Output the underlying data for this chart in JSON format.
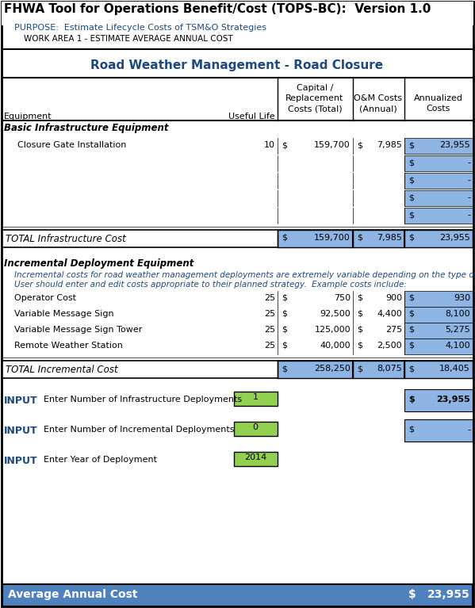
{
  "title": "FHWA Tool for Operations Benefit/Cost (TOPS-BC):  Version 1.0",
  "purpose": "PURPOSE:  Estimate Lifecycle Costs of TSM&O Strategies",
  "work_area": "WORK AREA 1 - ESTIMATE AVERAGE ANNUAL COST",
  "subtitle": "Road Weather Management - Road Closure",
  "col_headers_eq": "Equipment",
  "col_headers_ul": "Useful Life",
  "col_headers_cap1": "Capital /",
  "col_headers_cap2": "Replacement",
  "col_headers_cap3": "Costs (Total)",
  "col_headers_om1": "O&M Costs",
  "col_headers_om2": "(Annual)",
  "col_headers_ann1": "Annualized",
  "col_headers_ann2": "Costs",
  "basic_infra_label": "Basic Infrastructure Equipment",
  "basic_rows": [
    {
      "name": "Closure Gate Installation",
      "useful_life": "10",
      "cap_dollar": "$",
      "capital": "159,700",
      "om_dollar": "$",
      "om": "7,985",
      "annualized": "23,955"
    },
    {
      "name": "",
      "useful_life": "",
      "cap_dollar": "",
      "capital": "",
      "om_dollar": "",
      "om": "",
      "annualized": "-"
    },
    {
      "name": "",
      "useful_life": "",
      "cap_dollar": "",
      "capital": "",
      "om_dollar": "",
      "om": "",
      "annualized": "-"
    },
    {
      "name": "",
      "useful_life": "",
      "cap_dollar": "",
      "capital": "",
      "om_dollar": "",
      "om": "",
      "annualized": "-"
    },
    {
      "name": "",
      "useful_life": "",
      "cap_dollar": "",
      "capital": "",
      "om_dollar": "",
      "om": "",
      "annualized": "-"
    }
  ],
  "total_infra": {
    "label": "TOTAL Infrastructure Cost",
    "cap_dollar": "$",
    "capital": "159,700",
    "om_dollar": "$",
    "om": "7,985",
    "ann_dollar": "$",
    "annualized": "23,955"
  },
  "incremental_label": "Incremental Deployment Equipment",
  "incremental_note1": "Incremental costs for road weather management deployments are extremely variable depending on the type of dep",
  "incremental_note2": "User should enter and edit costs appropriate to their planned strategy.  Example costs include:",
  "incremental_rows": [
    {
      "name": "Operator Cost",
      "useful_life": "25",
      "cap_dollar": "$",
      "capital": "750",
      "om_dollar": "$",
      "om": "900",
      "annualized": "930"
    },
    {
      "name": "Variable Message Sign",
      "useful_life": "25",
      "cap_dollar": "$",
      "capital": "92,500",
      "om_dollar": "$",
      "om": "4,400",
      "annualized": "8,100"
    },
    {
      "name": "Variable Message Sign Tower",
      "useful_life": "25",
      "cap_dollar": "$",
      "capital": "125,000",
      "om_dollar": "$",
      "om": "275",
      "annualized": "5,275"
    },
    {
      "name": "Remote Weather Station",
      "useful_life": "25",
      "cap_dollar": "$",
      "capital": "40,000",
      "om_dollar": "$",
      "om": "2,500",
      "annualized": "4,100"
    }
  ],
  "total_incremental": {
    "label": "TOTAL Incremental Cost",
    "cap_dollar": "$",
    "capital": "258,250",
    "om_dollar": "$",
    "om": "8,075",
    "ann_dollar": "$",
    "annualized": "18,405"
  },
  "input_rows": [
    {
      "label": "INPUT",
      "text": "Enter Number of Infrastructure Deployments",
      "value": "1",
      "ann_dollar": "$",
      "annualized": "23,955"
    },
    {
      "label": "INPUT",
      "text": "Enter Number of Incremental Deployments",
      "value": "0",
      "ann_dollar": "$",
      "annualized": "-"
    },
    {
      "label": "INPUT",
      "text": "Enter Year of Deployment",
      "value": "2014",
      "ann_dollar": "",
      "annualized": ""
    }
  ],
  "average_annual_cost_label": "Average Annual Cost",
  "average_annual_cost_dollar": "$",
  "average_annual_cost_value": "23,955",
  "bg_color": "#FFFFFF",
  "blue_cell_color": "#8DB4E2",
  "subtitle_color": "#1F497D",
  "green_cell_color": "#92D050",
  "bottom_bar_color": "#4F81BD",
  "bottom_bar_text": "#FFFFFF",
  "italic_blue": "#1F497D",
  "purpose_color": "#1F497D"
}
